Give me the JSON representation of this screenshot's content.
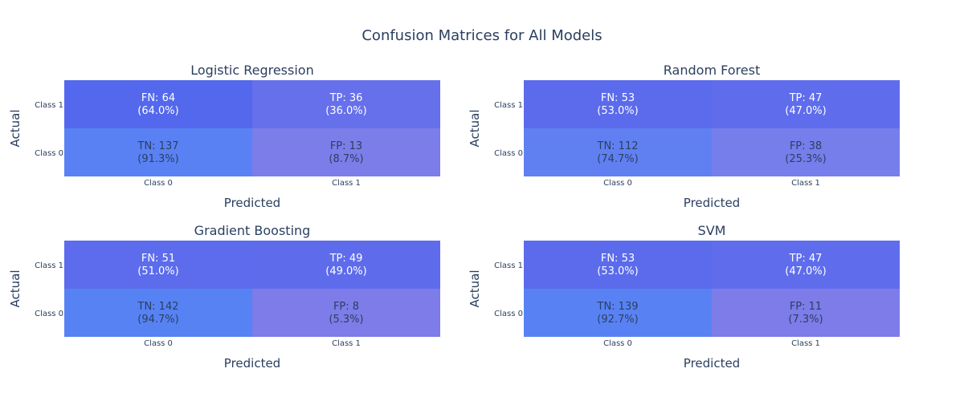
{
  "title": "Confusion Matrices for All Models",
  "colors": {
    "text": "#2a3f5f",
    "cell_text_dark_bg": "#ffffff",
    "cell_text_light_bg": "#2a3f5f",
    "scale_low": "#808080",
    "scale_high": "#3a5cf0"
  },
  "chart_data": [
    {
      "type": "heatmap",
      "title": "Logistic Regression",
      "xlabel": "Predicted",
      "ylabel": "Actual",
      "x_categories": [
        "Class 0",
        "Class 1"
      ],
      "y_categories": [
        "Class 0",
        "Class 1"
      ],
      "cells": [
        {
          "actual": "Class 1",
          "predicted": "Class 0",
          "label": "FN: 64",
          "pct_label": "(64.0%)",
          "count": 64,
          "pct": 64.0
        },
        {
          "actual": "Class 1",
          "predicted": "Class 1",
          "label": "TP: 36",
          "pct_label": "(36.0%)",
          "count": 36,
          "pct": 36.0
        },
        {
          "actual": "Class 0",
          "predicted": "Class 0",
          "label": "TN: 137",
          "pct_label": "(91.3%)",
          "count": 137,
          "pct": 91.3
        },
        {
          "actual": "Class 0",
          "predicted": "Class 1",
          "label": "FP: 13",
          "pct_label": "(8.7%)",
          "count": 13,
          "pct": 8.7
        }
      ]
    },
    {
      "type": "heatmap",
      "title": "Random Forest",
      "xlabel": "Predicted",
      "ylabel": "Actual",
      "x_categories": [
        "Class 0",
        "Class 1"
      ],
      "y_categories": [
        "Class 0",
        "Class 1"
      ],
      "cells": [
        {
          "actual": "Class 1",
          "predicted": "Class 0",
          "label": "FN: 53",
          "pct_label": "(53.0%)",
          "count": 53,
          "pct": 53.0
        },
        {
          "actual": "Class 1",
          "predicted": "Class 1",
          "label": "TP: 47",
          "pct_label": "(47.0%)",
          "count": 47,
          "pct": 47.0
        },
        {
          "actual": "Class 0",
          "predicted": "Class 0",
          "label": "TN: 112",
          "pct_label": "(74.7%)",
          "count": 112,
          "pct": 74.7
        },
        {
          "actual": "Class 0",
          "predicted": "Class 1",
          "label": "FP: 38",
          "pct_label": "(25.3%)",
          "count": 38,
          "pct": 25.3
        }
      ]
    },
    {
      "type": "heatmap",
      "title": "Gradient Boosting",
      "xlabel": "Predicted",
      "ylabel": "Actual",
      "x_categories": [
        "Class 0",
        "Class 1"
      ],
      "y_categories": [
        "Class 0",
        "Class 1"
      ],
      "cells": [
        {
          "actual": "Class 1",
          "predicted": "Class 0",
          "label": "FN: 51",
          "pct_label": "(51.0%)",
          "count": 51,
          "pct": 51.0
        },
        {
          "actual": "Class 1",
          "predicted": "Class 1",
          "label": "TP: 49",
          "pct_label": "(49.0%)",
          "count": 49,
          "pct": 49.0
        },
        {
          "actual": "Class 0",
          "predicted": "Class 0",
          "label": "TN: 142",
          "pct_label": "(94.7%)",
          "count": 142,
          "pct": 94.7
        },
        {
          "actual": "Class 0",
          "predicted": "Class 1",
          "label": "FP: 8",
          "pct_label": "(5.3%)",
          "count": 8,
          "pct": 5.3
        }
      ]
    },
    {
      "type": "heatmap",
      "title": "SVM",
      "xlabel": "Predicted",
      "ylabel": "Actual",
      "x_categories": [
        "Class 0",
        "Class 1"
      ],
      "y_categories": [
        "Class 0",
        "Class 1"
      ],
      "cells": [
        {
          "actual": "Class 1",
          "predicted": "Class 0",
          "label": "FN: 53",
          "pct_label": "(53.0%)",
          "count": 53,
          "pct": 53.0
        },
        {
          "actual": "Class 1",
          "predicted": "Class 1",
          "label": "TP: 47",
          "pct_label": "(47.0%)",
          "count": 47,
          "pct": 47.0
        },
        {
          "actual": "Class 0",
          "predicted": "Class 0",
          "label": "TN: 139",
          "pct_label": "(92.7%)",
          "count": 139,
          "pct": 92.7
        },
        {
          "actual": "Class 0",
          "predicted": "Class 1",
          "label": "FP: 11",
          "pct_label": "(7.3%)",
          "count": 11,
          "pct": 7.3
        }
      ]
    }
  ]
}
